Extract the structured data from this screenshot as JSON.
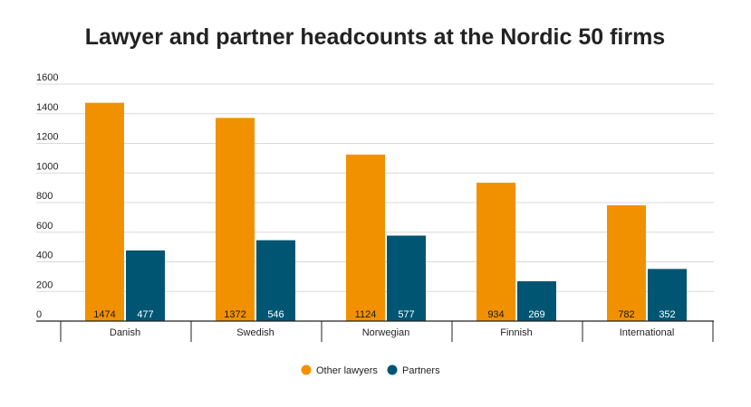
{
  "chart_data": {
    "type": "bar",
    "title": "Lawyer and partner headcounts at the Nordic 50 firms",
    "categories": [
      "Danish",
      "Swedish",
      "Norwegian",
      "Finnish",
      "International"
    ],
    "series": [
      {
        "name": "Other lawyers",
        "color": "#F29100",
        "label_color": "#1a1a1a",
        "values": [
          1474,
          1372,
          1124,
          934,
          782
        ]
      },
      {
        "name": "Partners",
        "color": "#005573",
        "label_color": "#ffffff",
        "values": [
          477,
          546,
          577,
          269,
          352
        ]
      }
    ],
    "yticks": [
      "0",
      "200",
      "400",
      "600",
      "800",
      "1000",
      "1200",
      "1400",
      "1600"
    ],
    "ylim": [
      0,
      1600
    ],
    "grid": true,
    "legend_position": "bottom-center"
  }
}
